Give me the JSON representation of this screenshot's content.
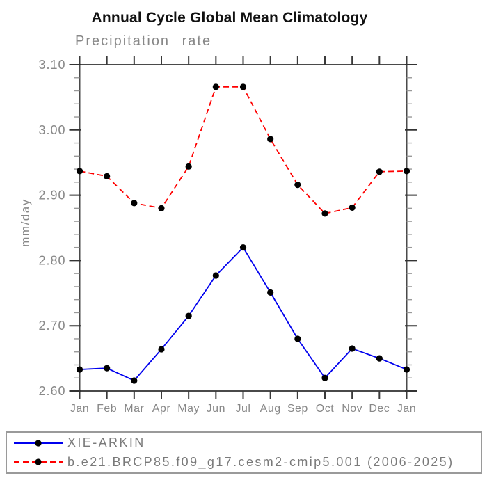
{
  "page": {
    "background": "#ffffff"
  },
  "chart_data": {
    "type": "line",
    "title": "Annual Cycle Global Mean Climatology",
    "subtitle": "Precipitation rate",
    "ylabel": "mm/day",
    "xlabel": "",
    "categories": [
      "Jan",
      "Feb",
      "Mar",
      "Apr",
      "May",
      "Jun",
      "Jul",
      "Aug",
      "Sep",
      "Oct",
      "Nov",
      "Dec",
      "Jan"
    ],
    "ylim": [
      2.6,
      3.1
    ],
    "yticks": [
      "2.60",
      "2.70",
      "2.80",
      "2.90",
      "3.00",
      "3.10"
    ],
    "y_minor_step": 0.02,
    "grid": false,
    "legend_position": "bottom-box",
    "axis_color": "#4a4a4a",
    "tick_label_color": "#888888",
    "marker": "filled-circle",
    "marker_color": "#000000",
    "series": [
      {
        "name": "XIE-ARKIN",
        "color": "#0000ee",
        "line_style": "solid",
        "values": [
          2.633,
          2.635,
          2.616,
          2.664,
          2.715,
          2.777,
          2.82,
          2.751,
          2.68,
          2.62,
          2.665,
          2.65,
          2.633
        ]
      },
      {
        "name": "b.e21.BRCP85.f09_g17.cesm2-cmip5.001 (2006-2025)",
        "color": "#ff0000",
        "line_style": "dashed",
        "values": [
          2.937,
          2.929,
          2.888,
          2.88,
          2.944,
          3.066,
          3.066,
          2.986,
          2.916,
          2.872,
          2.881,
          2.936,
          2.937
        ]
      }
    ]
  }
}
